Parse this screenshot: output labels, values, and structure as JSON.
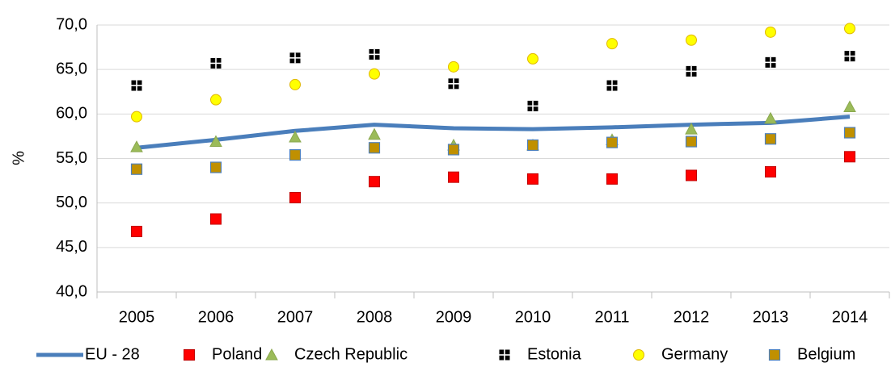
{
  "chart_data": {
    "type": "line",
    "y_label": "%",
    "categories": [
      "2005",
      "2006",
      "2007",
      "2008",
      "2009",
      "2010",
      "2011",
      "2012",
      "2013",
      "2014"
    ],
    "ylim": [
      40,
      70
    ],
    "yticks": [
      {
        "value": 40,
        "label": "40,0"
      },
      {
        "value": 45,
        "label": "45,0"
      },
      {
        "value": 50,
        "label": "50,0"
      },
      {
        "value": 55,
        "label": "55,0"
      },
      {
        "value": 60,
        "label": "60,0"
      },
      {
        "value": 65,
        "label": "65,0"
      },
      {
        "value": 70,
        "label": "70,0"
      }
    ],
    "grid": true,
    "legend": "bottom",
    "series": [
      {
        "name": "EU - 28",
        "color": "#4a7ebb",
        "marker": "none",
        "values": [
          56.2,
          57.1,
          58.1,
          58.8,
          58.4,
          58.3,
          58.5,
          58.8,
          59.0,
          59.7
        ]
      },
      {
        "name": "Poland",
        "color": "#ff0000",
        "marker": "square",
        "values": [
          46.8,
          48.2,
          50.6,
          52.4,
          52.9,
          52.7,
          52.7,
          53.1,
          53.5,
          55.2
        ]
      },
      {
        "name": "Czech Republic",
        "color": "#9bbb59",
        "marker": "triangle",
        "values": [
          56.3,
          56.9,
          57.4,
          57.7,
          56.5,
          56.5,
          57.1,
          58.3,
          59.5,
          60.8
        ]
      },
      {
        "name": "Estonia",
        "color": "#000000",
        "marker": "cross-square",
        "values": [
          63.2,
          65.7,
          66.3,
          66.7,
          63.4,
          60.9,
          63.2,
          64.8,
          65.8,
          66.5
        ]
      },
      {
        "name": "Germany",
        "color": "#ffff00",
        "marker": "circle",
        "values": [
          59.7,
          61.6,
          63.3,
          64.5,
          65.3,
          66.2,
          67.9,
          68.3,
          69.2,
          69.6
        ]
      },
      {
        "name": "Belgium",
        "color": "#c09000",
        "marker": "square-blue",
        "values": [
          53.8,
          54.0,
          55.4,
          56.2,
          56.0,
          56.5,
          56.8,
          56.9,
          57.2,
          57.9
        ]
      }
    ]
  }
}
